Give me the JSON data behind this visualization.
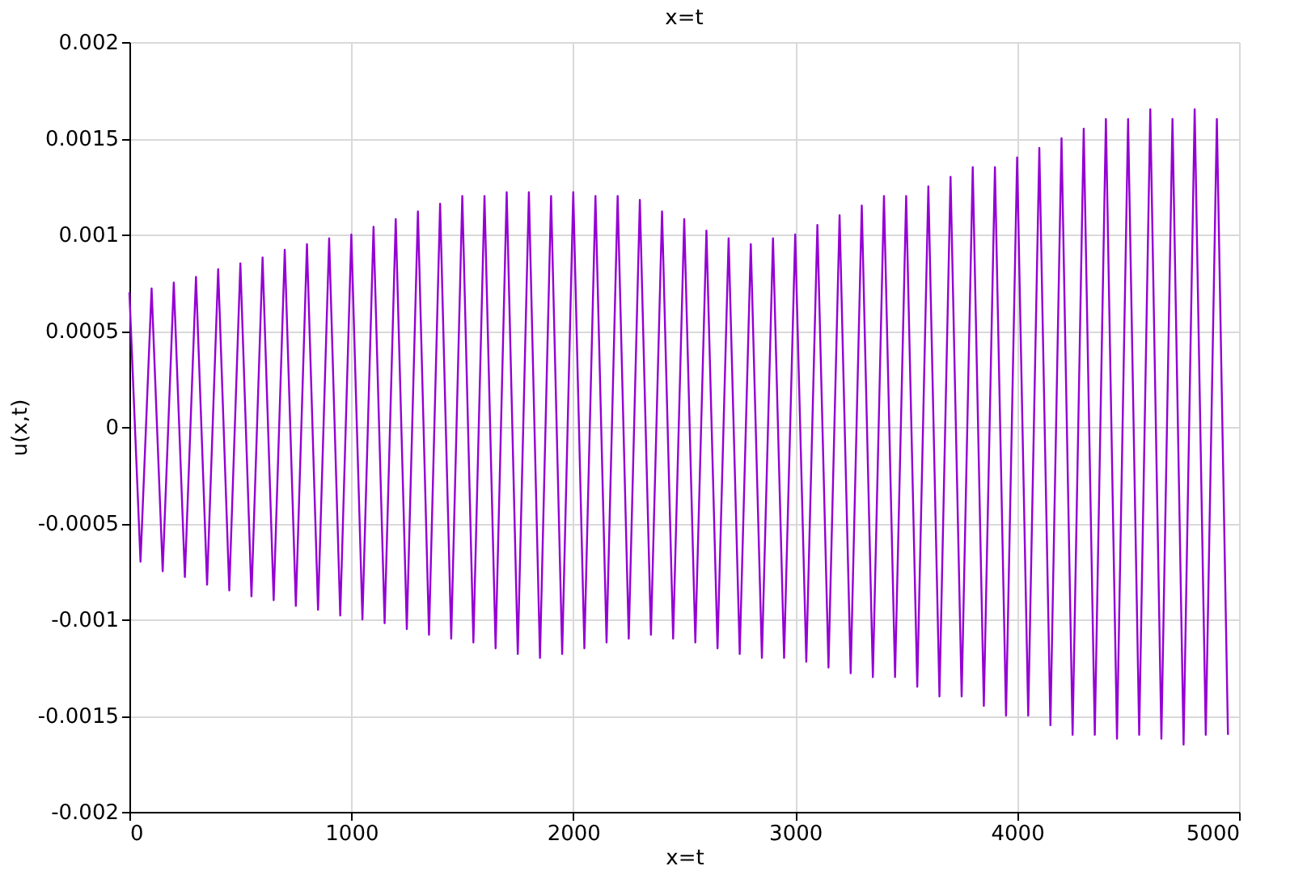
{
  "chart_data": {
    "type": "line",
    "title": "x=t",
    "xlabel": "x=t",
    "ylabel": "u(x,t)",
    "xlim": [
      0,
      5000
    ],
    "xticks": [
      0,
      1000,
      2000,
      3000,
      4000,
      5000
    ],
    "ylim": [
      -0.002,
      0.002
    ],
    "yticks": [
      -0.002,
      -0.0015,
      -0.001,
      -0.0005,
      0,
      0.0005,
      0.001,
      0.0015,
      0.002
    ],
    "grid": true,
    "line_style": "solid",
    "x": [
      0,
      50,
      100,
      150,
      200,
      250,
      300,
      350,
      400,
      450,
      500,
      550,
      600,
      650,
      700,
      750,
      800,
      850,
      900,
      950,
      1000,
      1050,
      1100,
      1150,
      1200,
      1250,
      1300,
      1350,
      1400,
      1450,
      1500,
      1550,
      1600,
      1650,
      1700,
      1750,
      1800,
      1850,
      1900,
      1950,
      2000,
      2050,
      2100,
      2150,
      2200,
      2250,
      2300,
      2350,
      2400,
      2450,
      2500,
      2550,
      2600,
      2650,
      2700,
      2750,
      2800,
      2850,
      2900,
      2950,
      3000,
      3050,
      3100,
      3150,
      3200,
      3250,
      3300,
      3350,
      3400,
      3450,
      3500,
      3550,
      3600,
      3650,
      3700,
      3750,
      3800,
      3850,
      3900,
      3950,
      4000,
      4050,
      4100,
      4150,
      4200,
      4250,
      4300,
      4350,
      4400,
      4450,
      4500,
      4550,
      4600,
      4650,
      4700,
      4750,
      4800,
      4850,
      4900,
      4950
    ],
    "series": [
      {
        "color": "#9400d3",
        "values": [
          0.0007,
          -0.0007,
          0.00072,
          -0.00075,
          0.00075,
          -0.00078,
          0.00078,
          -0.00082,
          0.00082,
          -0.00085,
          0.00085,
          -0.00088,
          0.00088,
          -0.0009,
          0.00092,
          -0.00093,
          0.00095,
          -0.00095,
          0.00098,
          -0.00098,
          0.001,
          -0.001,
          0.00104,
          -0.00102,
          0.00108,
          -0.00105,
          0.00112,
          -0.00108,
          0.00116,
          -0.0011,
          0.0012,
          -0.00112,
          0.0012,
          -0.00115,
          0.00122,
          -0.00118,
          0.00122,
          -0.0012,
          0.0012,
          -0.00118,
          0.00122,
          -0.00115,
          0.0012,
          -0.00112,
          0.0012,
          -0.0011,
          0.00118,
          -0.00108,
          0.00112,
          -0.0011,
          0.00108,
          -0.00112,
          0.00102,
          -0.00115,
          0.00098,
          -0.00118,
          0.00095,
          -0.0012,
          0.00098,
          -0.0012,
          0.001,
          -0.00122,
          0.00105,
          -0.00125,
          0.0011,
          -0.00128,
          0.00115,
          -0.0013,
          0.0012,
          -0.0013,
          0.0012,
          -0.00135,
          0.00125,
          -0.0014,
          0.0013,
          -0.0014,
          0.00135,
          -0.00145,
          0.00135,
          -0.0015,
          0.0014,
          -0.0015,
          0.00145,
          -0.00155,
          0.0015,
          -0.0016,
          0.00155,
          -0.0016,
          0.0016,
          -0.00162,
          0.0016,
          -0.0016,
          0.00165,
          -0.00162,
          0.0016,
          -0.00165,
          0.00165,
          -0.0016,
          0.0016,
          -0.0016
        ]
      }
    ]
  }
}
